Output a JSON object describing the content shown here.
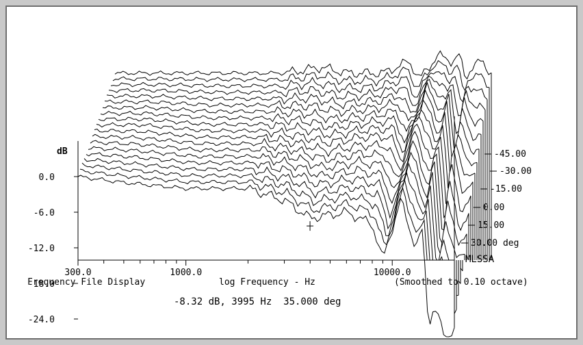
{
  "chart_data": {
    "type": "waterfall",
    "title": "",
    "footer_left": "Frequency File Display",
    "xlabel": "log Frequency - Hz",
    "note": "(Smoothed to 0.10 octave)",
    "readout": "-8.32 dB, 3995 Hz  35.000 deg",
    "brand": "MLSSA",
    "ylabel": "dB",
    "x_ticks": [
      "300.0",
      "1000.0",
      "10000.0"
    ],
    "x_tick_values": [
      300,
      1000,
      10000
    ],
    "y_ticks": [
      "0.0",
      "-6.0",
      "-12.0",
      "-18.0",
      "-24.0"
    ],
    "y_tick_values": [
      0,
      -6,
      -12,
      -18,
      -24
    ],
    "depth_labels": [
      "-45.00",
      "-30.00",
      "-15.00",
      "0.00",
      "15.00",
      "30.00 deg"
    ],
    "depth_label_values": [
      -45,
      -30,
      -15,
      0,
      15,
      30
    ],
    "angles_deg": [
      -45,
      -40,
      -35,
      -30,
      -25,
      -20,
      -15,
      -10,
      -5,
      0,
      5,
      10,
      15,
      20,
      25,
      30,
      35,
      40,
      45
    ],
    "x_range_hz": [
      300,
      20000
    ],
    "y_range_db": [
      -27,
      3
    ],
    "front_trace_angle_deg": 45,
    "back_trace_angle_deg": -45,
    "series": [
      {
        "name": "",
        "angle": 45,
        "freq_hz": [
          300,
          500,
          1000,
          2000,
          3000,
          4000,
          6000,
          8000,
          9000,
          11000,
          13000,
          14000,
          15000,
          16000,
          18000,
          20000
        ],
        "db": [
          0,
          -1,
          -2,
          -2,
          -4,
          -7,
          -6,
          -8,
          -14,
          -4,
          -12,
          -9,
          -25,
          -22,
          -27,
          -26
        ]
      },
      {
        "name": "",
        "angle": 0,
        "freq_hz": [
          300,
          500,
          1000,
          2000,
          3000,
          4000,
          6000,
          8000,
          9000,
          11000,
          13000,
          14000,
          15000,
          16000,
          18000,
          20000
        ],
        "db": [
          0,
          0,
          -1,
          -1,
          -2,
          -3,
          -2,
          -2,
          -6,
          2,
          -5,
          -1,
          -16,
          -3,
          -12,
          -10
        ]
      },
      {
        "name": "",
        "angle": -45,
        "freq_hz": [
          300,
          500,
          1000,
          2000,
          3000,
          4000,
          6000,
          8000,
          9000,
          11000,
          13000,
          14000,
          15000,
          16000,
          18000,
          20000
        ],
        "db": [
          0,
          0,
          0,
          0,
          1,
          0,
          0,
          2,
          -1,
          3,
          2,
          3,
          -1,
          1,
          2,
          0
        ]
      }
    ]
  }
}
